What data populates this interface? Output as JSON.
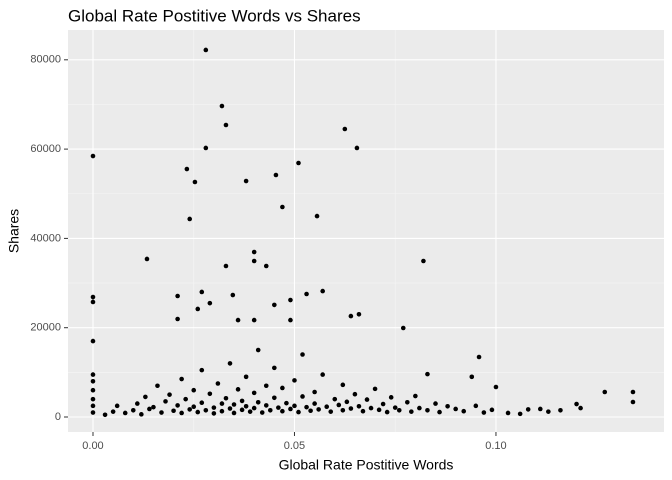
{
  "chart_data": {
    "type": "scatter",
    "title": "Global Rate Postitive Words vs Shares",
    "x_label": "Global Rate Postitive Words",
    "y_label": "Shares",
    "color": "#000000",
    "grid": true,
    "xlim": [
      -0.0062,
      0.1417
    ],
    "ylim": [
      -3360,
      86675
    ],
    "xticks": [
      {
        "value": 0,
        "label": "0.00"
      },
      0.05,
      {
        "value": 0.1,
        "label": "0.10"
      }
    ],
    "yticks": [
      0,
      20000,
      40000,
      60000,
      80000
    ],
    "x": [
      0,
      0.028,
      0.032,
      0.033,
      0.028,
      0.0233,
      0.0253,
      0.024,
      0.038,
      0.0454,
      0.047,
      0.051,
      0.0625,
      0.0655,
      0.0556,
      0.0134,
      0.04,
      0.04,
      0.043,
      0.033,
      0.082,
      0,
      0,
      0,
      0.077,
      0.0958,
      0.1,
      0.134,
      0.134,
      0.127,
      0.12,
      0.121,
      0.111,
      0.106,
      0.094,
      0.083,
      0.057,
      0.053,
      0.021,
      0.027,
      0.064,
      0.066,
      0.0347,
      0.036,
      0.04,
      0.049,
      0.029,
      0.026,
      0.045,
      0.049,
      0.021,
      0.003,
      0.005,
      0.006,
      0.008,
      0.01,
      0.011,
      0.012,
      0.013,
      0.014,
      0.015,
      0.016,
      0.017,
      0.018,
      0.019,
      0.02,
      0.021,
      0.022,
      0.022,
      0.023,
      0.024,
      0.025,
      0.025,
      0.026,
      0.027,
      0.027,
      0.028,
      0.029,
      0.03,
      0.03,
      0.031,
      0.032,
      0.032,
      0.033,
      0.034,
      0.034,
      0.035,
      0.035,
      0.036,
      0.037,
      0.037,
      0.038,
      0.038,
      0.039,
      0.04,
      0.04,
      0.041,
      0.041,
      0.042,
      0.043,
      0.043,
      0.044,
      0.045,
      0.045,
      0.046,
      0.047,
      0.047,
      0.048,
      0.049,
      0.05,
      0.05,
      0.051,
      0.052,
      0.052,
      0.053,
      0.054,
      0.055,
      0.055,
      0.056,
      0.057,
      0.058,
      0.059,
      0.06,
      0.061,
      0.062,
      0.062,
      0.063,
      0.064,
      0.065,
      0.066,
      0.067,
      0.068,
      0.069,
      0.07,
      0.071,
      0.072,
      0.073,
      0.074,
      0.075,
      0.076,
      0.078,
      0.079,
      0.08,
      0.081,
      0.083,
      0.085,
      0.086,
      0.088,
      0.09,
      0.092,
      0.095,
      0.097,
      0.099,
      0.103,
      0.108,
      0.113,
      0.116,
      0,
      0,
      0,
      0,
      0,
      0
    ],
    "values": [
      58450,
      82200,
      69650,
      65400,
      60250,
      55540,
      52630,
      44350,
      52850,
      54200,
      47030,
      56890,
      64500,
      60250,
      45000,
      35390,
      36950,
      34940,
      33820,
      33820,
      34940,
      26870,
      25760,
      17000,
      19930,
      13440,
      6720,
      5600,
      3360,
      5600,
      2900,
      2000,
      1800,
      700,
      9000,
      9600,
      28200,
      27550,
      27100,
      28000,
      22600,
      23000,
      27320,
      21700,
      21700,
      21700,
      25500,
      24200,
      25100,
      26200,
      21950,
      500,
      1200,
      2500,
      900,
      1500,
      3000,
      600,
      4500,
      1800,
      2200,
      7000,
      1000,
      3500,
      5000,
      1400,
      2600,
      8500,
      900,
      4000,
      1700,
      6000,
      2300,
      1100,
      3200,
      10500,
      1500,
      5200,
      2100,
      800,
      7500,
      3000,
      1300,
      4200,
      1900,
      12000,
      2800,
      900,
      6200,
      1600,
      3600,
      9000,
      2400,
      1200,
      5400,
      2000,
      15000,
      3300,
      1000,
      7000,
      2600,
      1500,
      4300,
      11000,
      2100,
      1300,
      6500,
      3100,
      1800,
      8200,
      2500,
      1100,
      4600,
      14000,
      2200,
      1400,
      5600,
      3000,
      1700,
      9500,
      2300,
      1200,
      4000,
      2700,
      1500,
      7200,
      3400,
      1900,
      5100,
      2400,
      1300,
      3900,
      2000,
      6300,
      1600,
      2900,
      1100,
      4400,
      2100,
      1500,
      3300,
      1200,
      4700,
      2000,
      1500,
      3000,
      1100,
      2400,
      1800,
      1300,
      2500,
      1000,
      1600,
      900,
      1700,
      1200,
      1500,
      1000,
      2500,
      4000,
      6000,
      8000,
      9500
    ]
  }
}
